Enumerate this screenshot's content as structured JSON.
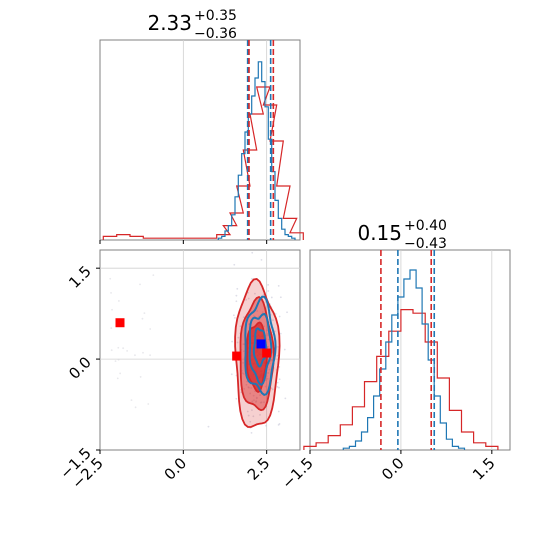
{
  "chart_data": {
    "type": "corner",
    "colors": {
      "series_a": "#1f77b4",
      "series_b": "#d62728",
      "marker_a": "#0000ff",
      "marker_b": "#ff0000",
      "grid": "#d0d0d0",
      "spine": "#808080"
    },
    "parameters": [
      {
        "title": {
          "main": "2.33",
          "plus": "+0.35",
          "minus": "−0.36"
        },
        "range": [
          -2.5,
          3.5
        ],
        "ticks": [
          {
            "value": -2.5,
            "label": "−2.5"
          },
          {
            "value": 0.0,
            "label": "0.0"
          },
          {
            "value": 2.5,
            "label": "2.5"
          }
        ],
        "quantile_lines": {
          "series_a": [
            1.93,
            2.62
          ],
          "series_b": [
            1.97,
            2.7
          ]
        }
      },
      {
        "title": {
          "main": "0.15",
          "plus": "+0.40",
          "minus": "−0.43"
        },
        "range": [
          -1.5,
          1.8
        ],
        "ticks": [
          {
            "value": -1.5,
            "label": "−1.5"
          },
          {
            "value": 0.0,
            "label": "0.0"
          },
          {
            "value": 1.5,
            "label": "1.5"
          }
        ],
        "quantile_lines": {
          "series_a": [
            -0.05,
            0.55
          ],
          "series_b": [
            -0.33,
            0.5
          ]
        }
      }
    ],
    "histograms": [
      {
        "param": 0,
        "series_a": {
          "x": [
            1.1,
            1.2,
            1.3,
            1.4,
            1.5,
            1.6,
            1.7,
            1.8,
            1.9,
            2.0,
            2.1,
            2.2,
            2.3,
            2.4,
            2.5,
            2.6,
            2.7,
            2.8,
            2.9,
            3.0,
            3.1,
            3.2,
            3.3
          ],
          "density": [
            0.01,
            0.02,
            0.05,
            0.08,
            0.14,
            0.24,
            0.36,
            0.48,
            0.6,
            0.7,
            0.8,
            0.9,
            0.99,
            0.88,
            0.74,
            0.56,
            0.38,
            0.22,
            0.12,
            0.06,
            0.03,
            0.02,
            0.01
          ]
        },
        "series_b": {
          "x": [
            -2.2,
            -1.8,
            -1.4,
            -1.0,
            0.8,
            1.2,
            1.4,
            1.6,
            1.8,
            2.0,
            2.2,
            2.4,
            2.6,
            2.8,
            3.0,
            3.2,
            3.4
          ],
          "density": [
            0.02,
            0.03,
            0.02,
            0.01,
            0.01,
            0.03,
            0.08,
            0.15,
            0.3,
            0.5,
            0.7,
            0.85,
            0.75,
            0.55,
            0.3,
            0.12,
            0.04
          ]
        }
      },
      {
        "param": 1,
        "series_a": {
          "x": [
            -0.9,
            -0.8,
            -0.7,
            -0.6,
            -0.5,
            -0.4,
            -0.3,
            -0.2,
            -0.1,
            0.0,
            0.1,
            0.2,
            0.3,
            0.4,
            0.5,
            0.6,
            0.7,
            0.8,
            0.9,
            1.0
          ],
          "density": [
            0.01,
            0.02,
            0.05,
            0.1,
            0.18,
            0.3,
            0.45,
            0.6,
            0.75,
            0.85,
            0.95,
            1.0,
            0.9,
            0.7,
            0.5,
            0.3,
            0.15,
            0.06,
            0.02,
            0.01
          ]
        },
        "series_b": {
          "x": [
            -1.5,
            -1.3,
            -1.1,
            -0.9,
            -0.7,
            -0.5,
            -0.3,
            -0.1,
            0.1,
            0.3,
            0.5,
            0.7,
            0.9,
            1.1,
            1.3,
            1.5
          ],
          "density": [
            0.02,
            0.04,
            0.08,
            0.14,
            0.24,
            0.38,
            0.52,
            0.66,
            0.78,
            0.76,
            0.6,
            0.4,
            0.22,
            0.1,
            0.04,
            0.02
          ]
        }
      }
    ],
    "joint": {
      "params": [
        0,
        1
      ],
      "series_a_contours": [
        {
          "center": [
            2.3,
            0.2
          ],
          "radius": [
            0.45,
            0.75
          ]
        },
        {
          "center": [
            2.3,
            0.2
          ],
          "radius": [
            0.32,
            0.55
          ]
        },
        {
          "center": [
            2.3,
            0.2
          ],
          "radius": [
            0.18,
            0.3
          ]
        }
      ],
      "series_b_contours": [
        {
          "center": [
            2.2,
            0.05
          ],
          "radius": [
            0.65,
            1.2
          ]
        },
        {
          "center": [
            2.2,
            0.05
          ],
          "radius": [
            0.5,
            0.9
          ]
        },
        {
          "center": [
            2.2,
            0.05
          ],
          "radius": [
            0.3,
            0.55
          ]
        }
      ],
      "markers": [
        {
          "x": 2.33,
          "y": 0.25,
          "series": "marker_a"
        },
        {
          "x": 1.6,
          "y": 0.05,
          "series": "marker_b"
        },
        {
          "x": 2.5,
          "y": 0.1,
          "series": "marker_b"
        },
        {
          "x": -1.9,
          "y": 0.6,
          "series": "marker_b"
        }
      ]
    }
  }
}
